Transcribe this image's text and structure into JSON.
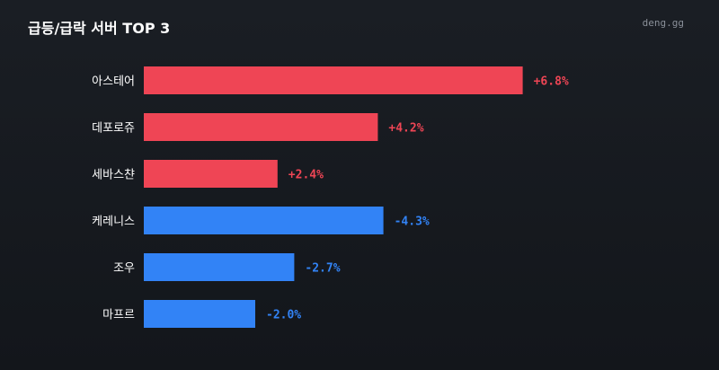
{
  "header": {
    "title": "급등/급락 서버 TOP 3",
    "brand": "deng.gg"
  },
  "colors": {
    "rise": "#ef4555",
    "fall": "#3283f6",
    "background": "#161a1f"
  },
  "chart_data": {
    "type": "bar",
    "orientation": "horizontal",
    "categories": [
      "아스테어",
      "데포로쥬",
      "세바스챤",
      "케레니스",
      "조우",
      "마프르"
    ],
    "values": [
      6.8,
      4.2,
      2.4,
      -4.3,
      -2.7,
      -2.0
    ],
    "value_labels": [
      "+6.8%",
      "+4.2%",
      "+2.4%",
      "-4.3%",
      "-2.7%",
      "-2.0%"
    ],
    "groups": [
      "rise",
      "rise",
      "rise",
      "fall",
      "fall",
      "fall"
    ],
    "unit": "%",
    "grid": false,
    "legend": "none"
  }
}
